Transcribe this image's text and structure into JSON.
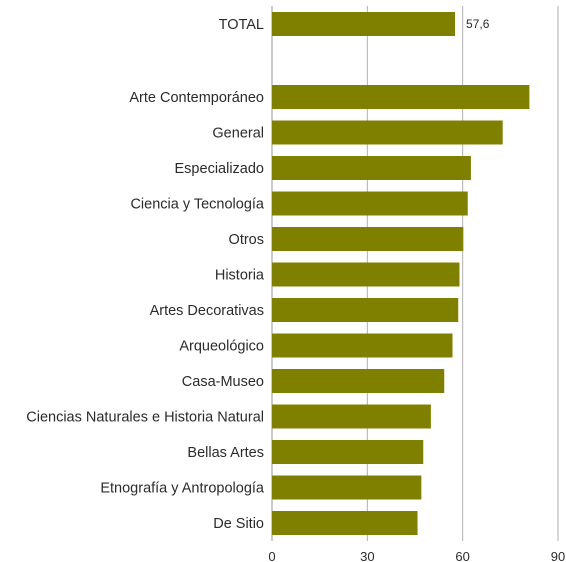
{
  "chart_data": {
    "type": "bar",
    "orientation": "horizontal",
    "categories": [
      "TOTAL",
      "Arte Contemporáneo",
      "General",
      "Especializado",
      "Ciencia y Tecnología",
      "Otros",
      "Historia",
      "Artes Decorativas",
      "Arqueológico",
      "Casa-Museo",
      "Ciencias Naturales e Historia Natural",
      "Bellas Artes",
      "Etnografía y Antropología",
      "De Sitio"
    ],
    "values": [
      57.6,
      81.0,
      72.6,
      62.6,
      61.6,
      60.2,
      59.0,
      58.6,
      56.8,
      54.2,
      50.0,
      47.6,
      47.0,
      45.8
    ],
    "data_labels": [
      "57,6",
      "",
      "",
      "",
      "",
      "",
      "",
      "",
      "",
      "",
      "",
      "",
      "",
      ""
    ],
    "xlim": [
      0,
      90
    ],
    "xticks": [
      "0",
      "30",
      "60",
      "90"
    ],
    "grid": "vertical",
    "bar_color": "#808000",
    "title": "",
    "xlabel": "",
    "ylabel": ""
  }
}
